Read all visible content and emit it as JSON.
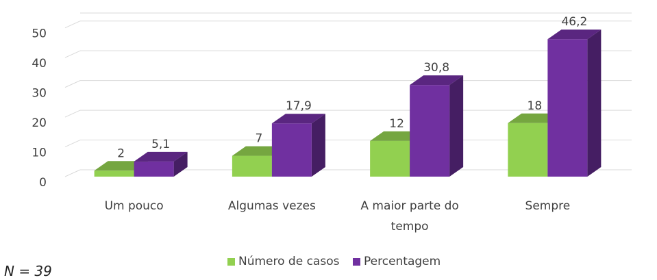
{
  "chart_data": {
    "type": "bar3d",
    "categories": [
      "Um pouco",
      "Algumas vezes",
      "A maior parte do tempo",
      "Sempre"
    ],
    "series": [
      {
        "name": "Número de casos",
        "color": "#92d050",
        "values": [
          2,
          7,
          12,
          18
        ]
      },
      {
        "name": "Percentagem",
        "color": "#7030a0",
        "values": [
          5.1,
          17.9,
          30.8,
          46.2
        ],
        "value_labels": [
          "5,1",
          "17,9",
          "30,8",
          "46,2"
        ]
      }
    ],
    "ylim": [
      0,
      55
    ],
    "yticks": [
      0,
      10,
      20,
      30,
      40,
      50
    ],
    "grid": true,
    "legend": "bottom",
    "annotation": "N = 39"
  }
}
